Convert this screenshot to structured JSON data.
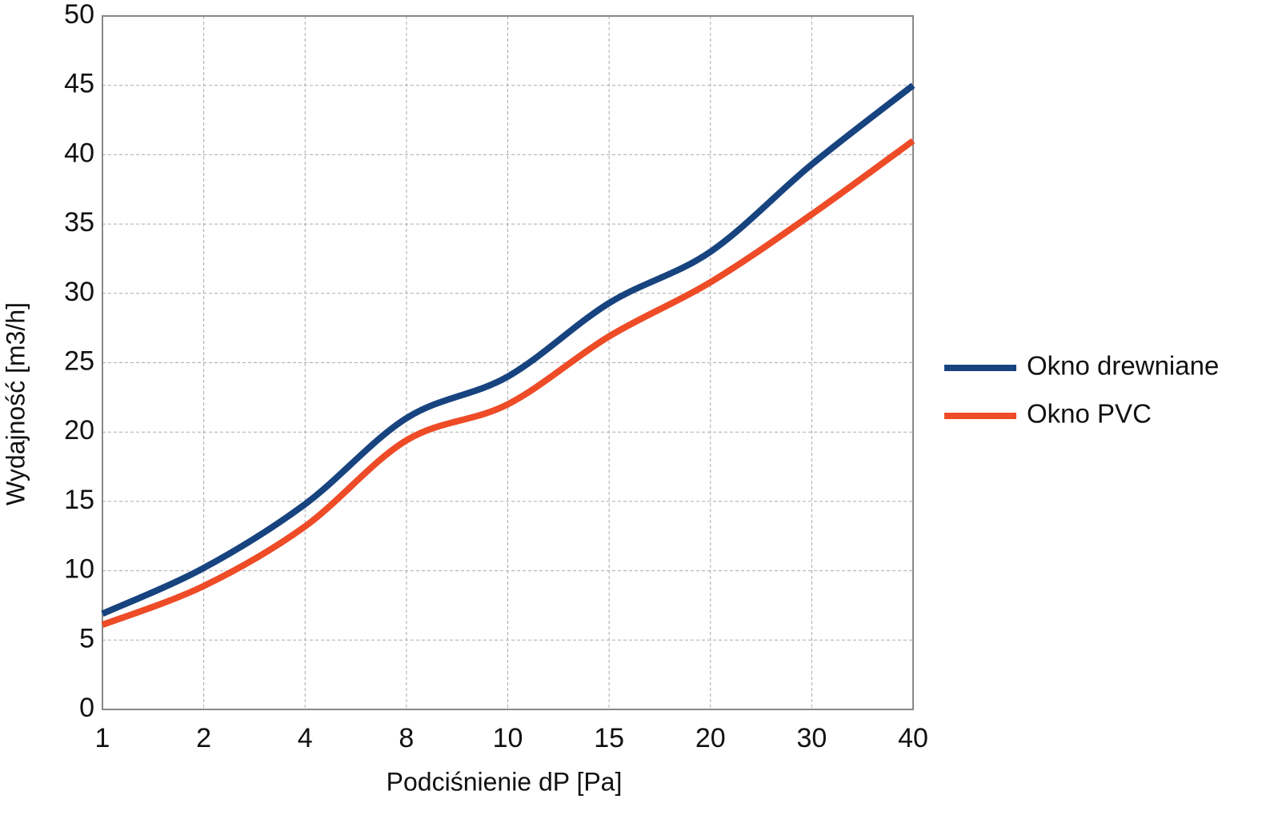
{
  "chart_data": {
    "type": "line",
    "x_label": "Podciśnienie dP [Pa]",
    "y_label": "Wydajność [m3/h]",
    "categories": [
      "1",
      "2",
      "4",
      "8",
      "10",
      "15",
      "20",
      "30",
      "40"
    ],
    "series": [
      {
        "name": "Okno drewniane",
        "color": "#17437f",
        "values": [
          6.9,
          10.2,
          14.8,
          21,
          24,
          29.3,
          33,
          39.3,
          45
        ]
      },
      {
        "name": "Okno PVC",
        "color": "#ee4b27",
        "values": [
          6.1,
          8.9,
          13.2,
          19.4,
          22,
          26.9,
          30.8,
          35.7,
          41
        ]
      }
    ],
    "ylim": [
      0,
      50
    ],
    "yticks": [
      0,
      5,
      10,
      15,
      20,
      25,
      30,
      35,
      40,
      45,
      50
    ],
    "grid": true,
    "legend": "right"
  }
}
